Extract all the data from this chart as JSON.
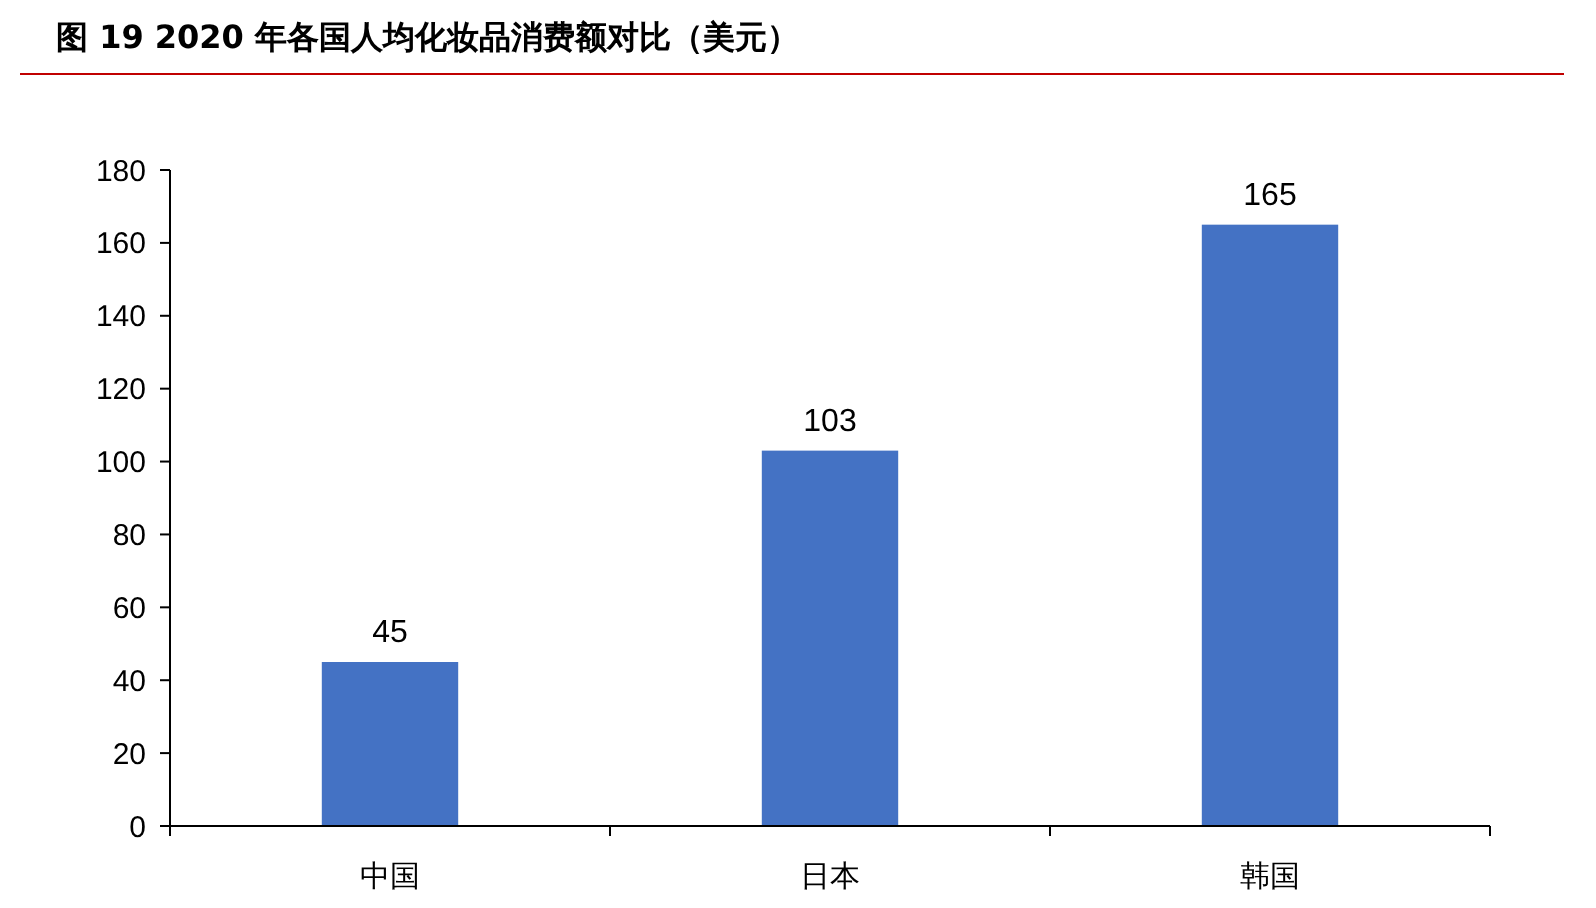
{
  "chart_data": {
    "type": "bar",
    "title": "图 19 2020 年各国人均化妆品消费额对比（美元）",
    "categories": [
      "中国",
      "日本",
      "韩国"
    ],
    "values": [
      45,
      103,
      165
    ],
    "color": "#4472c4",
    "data_labels": true,
    "ylim": [
      0,
      180
    ],
    "yticks": [
      0,
      20,
      40,
      60,
      80,
      100,
      120,
      140,
      160,
      180
    ],
    "grid": false
  }
}
